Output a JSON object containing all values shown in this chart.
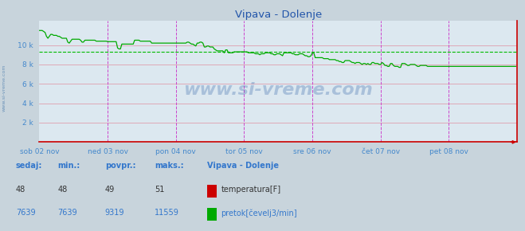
{
  "title": "Vipava - Dolenje",
  "bg_color": "#c8d4dc",
  "plot_bg_color": "#dce8f0",
  "x_label_color": "#4488cc",
  "y_label_color": "#4488cc",
  "title_color": "#2255aa",
  "vline_color": "#cc44cc",
  "hline_avg_color": "#00bb00",
  "flow_line_color": "#00aa00",
  "temp_line_color": "#cc0000",
  "axis_color": "#cc0000",
  "hgrid_color": "#e090a0",
  "x_ticks": [
    0,
    48,
    96,
    144,
    192,
    240,
    288
  ],
  "x_tick_labels": [
    "sob 02 nov",
    "ned 03 nov",
    "pon 04 nov",
    "tor 05 nov",
    "sre 06 nov",
    "čet 07 nov",
    "pet 08 nov"
  ],
  "y_ticks": [
    0,
    2000,
    4000,
    6000,
    8000,
    10000,
    12000
  ],
  "y_tick_labels": [
    "",
    "2 k",
    "4 k",
    "6 k",
    "8 k",
    "10 k",
    ""
  ],
  "ylim": [
    0,
    12500
  ],
  "xlim": [
    0,
    336
  ],
  "flow_avg": 9319,
  "temp_sedaj": 48,
  "temp_min": 48,
  "temp_avg": 49,
  "temp_max": 51,
  "flow_sedaj": 7639,
  "flow_min": 7639,
  "flow_avg_val": 9319,
  "flow_max": 11559,
  "watermark": "www.si-vreme.com",
  "footer_label_color": "#3377cc",
  "legend_title": "Vipava - Dolenje",
  "legend_items": [
    "temperatura[F]",
    "pretok[čevelj3/min]"
  ],
  "legend_colors": [
    "#cc0000",
    "#00aa00"
  ],
  "flow_data": [
    11500,
    11500,
    11500,
    11400,
    11300,
    10900,
    10700,
    10900,
    11100,
    11100,
    11000,
    11000,
    11000,
    10900,
    10900,
    10800,
    10700,
    10700,
    10700,
    10700,
    10300,
    10200,
    10400,
    10600,
    10600,
    10600,
    10600,
    10600,
    10600,
    10500,
    10300,
    10300,
    10500,
    10500,
    10500,
    10500,
    10500,
    10500,
    10500,
    10500,
    10400,
    10400,
    10400,
    10400,
    10400,
    10400,
    10400,
    10400,
    10350,
    10350,
    10350,
    10350,
    10350,
    10350,
    10350,
    9700,
    9600,
    9600,
    10100,
    10100,
    10100,
    10100,
    10100,
    10100,
    10100,
    10100,
    10100,
    10500,
    10500,
    10500,
    10500,
    10400,
    10400,
    10400,
    10400,
    10400,
    10400,
    10400,
    10400,
    10200,
    10200,
    10200,
    10200,
    10200,
    10200,
    10200,
    10200,
    10200,
    10200,
    10200,
    10200,
    10200,
    10200,
    10200,
    10200,
    10200,
    10200,
    10200,
    10200,
    10200,
    10200,
    10200,
    10200,
    10200,
    10300,
    10300,
    10200,
    10100,
    10100,
    10000,
    9900,
    10200,
    10200,
    10300,
    10300,
    10200,
    9800,
    9800,
    9900,
    9900,
    9800,
    9800,
    9800,
    9600,
    9500,
    9400,
    9400,
    9400,
    9400,
    9400,
    9200,
    9500,
    9500,
    9200,
    9200,
    9200,
    9200,
    9300,
    9300,
    9300,
    9300,
    9300,
    9300,
    9300,
    9300,
    9300,
    9300,
    9200,
    9200,
    9200,
    9200,
    9200,
    9100,
    9100,
    9100,
    9000,
    9100,
    9100,
    9100,
    9200,
    9200,
    9200,
    9200,
    9100,
    9100,
    9000,
    9000,
    9100,
    9100,
    9100,
    9000,
    8900,
    9200,
    9200,
    9200,
    9200,
    9200,
    9200,
    9100,
    9100,
    9000,
    9000,
    9000,
    9100,
    9100,
    9100,
    9000,
    8900,
    8900,
    8800,
    8800,
    8900,
    9200,
    9200,
    8700,
    8700,
    8700,
    8700,
    8700,
    8700,
    8600,
    8600,
    8600,
    8600,
    8500,
    8500,
    8500,
    8500,
    8500,
    8400,
    8400,
    8300,
    8300,
    8200,
    8200,
    8400,
    8400,
    8400,
    8400,
    8300,
    8200,
    8200,
    8100,
    8200,
    8200,
    8200,
    8100,
    8000,
    8100,
    8100,
    8000,
    8100,
    8000,
    8000,
    8200,
    8200,
    8100,
    8100,
    8100,
    8000,
    8000,
    8200,
    8100,
    7900,
    7900,
    7800,
    7800,
    8100,
    8100,
    7900,
    7800,
    7800,
    7800,
    7700,
    7700,
    8100,
    8100,
    8100,
    8000,
    7900,
    7900,
    8000,
    8000,
    8000,
    8000,
    7900,
    7800,
    7800,
    7900,
    7900,
    7900,
    7900,
    7900,
    7800,
    7800
  ]
}
